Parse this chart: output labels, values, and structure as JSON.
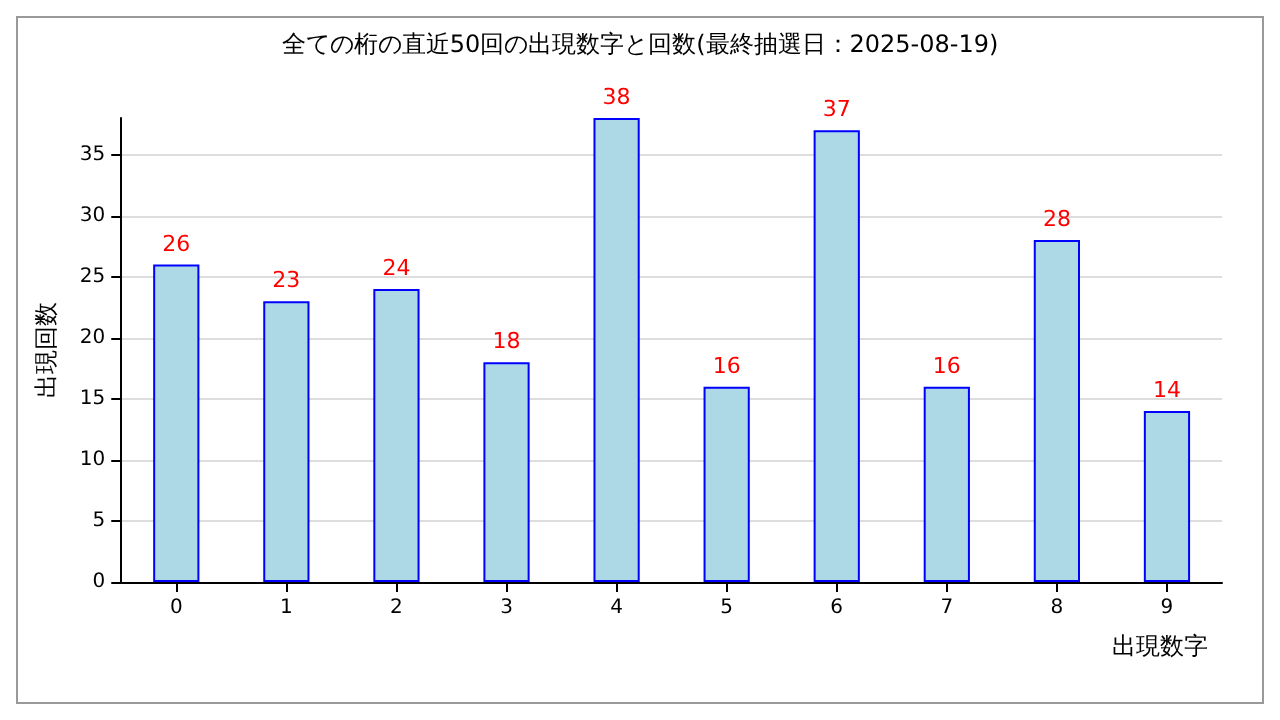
{
  "chart_data": {
    "type": "bar",
    "title": "全ての桁の直近50回の出現数字と回数(最終抽選日：2025-08-19)",
    "xlabel": "出現数字",
    "ylabel": "出現回数",
    "categories": [
      "0",
      "1",
      "2",
      "3",
      "4",
      "5",
      "6",
      "7",
      "8",
      "9"
    ],
    "values": [
      26,
      23,
      24,
      18,
      38,
      16,
      37,
      16,
      28,
      14
    ],
    "color": "#add8e6",
    "ylim": [
      0,
      38
    ],
    "yticks": [
      0,
      5,
      10,
      15,
      20,
      25,
      30,
      35
    ],
    "grid": "y",
    "data_labels": true
  }
}
